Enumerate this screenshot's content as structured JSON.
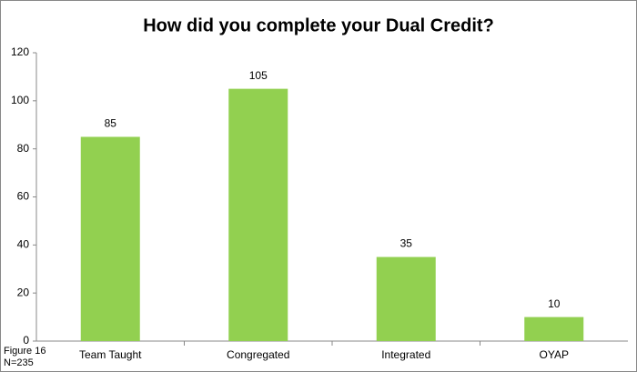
{
  "chart_data": {
    "type": "bar",
    "title": "How did you complete your Dual Credit?",
    "categories": [
      "Team Taught",
      "Congregated",
      "Integrated",
      "OYAP"
    ],
    "values": [
      85,
      105,
      35,
      10
    ],
    "color": "#92d050",
    "ylim": [
      0,
      120
    ],
    "yticks": [
      0,
      20,
      40,
      60,
      80,
      100,
      120
    ],
    "grid": false,
    "annotations": [
      "Figure 16",
      "N=235"
    ]
  }
}
